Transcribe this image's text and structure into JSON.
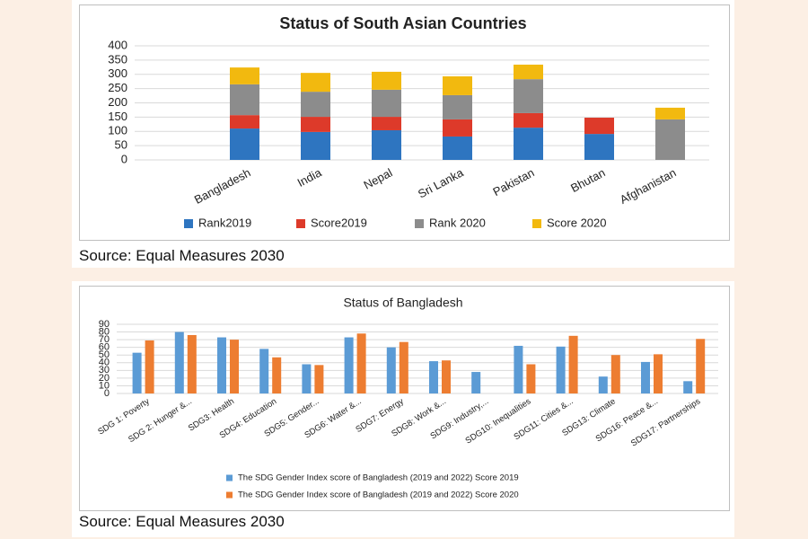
{
  "chart_data": [
    {
      "type": "bar",
      "stacked": true,
      "title": "Status of South Asian Countries",
      "source": "Source: Equal Measures 2030",
      "categories": [
        "Bangladesh",
        "India",
        "Nepal",
        "Sri Lanka",
        "Pakistan",
        "Bhutan",
        "Afghanistan"
      ],
      "series": [
        {
          "name": "Rank2019",
          "color": "#2e75c0",
          "values": [
            110,
            98,
            104,
            82,
            113,
            91,
            null
          ]
        },
        {
          "name": "Score2019",
          "color": "#dd3a2a",
          "values": [
            47,
            53,
            47,
            60,
            51,
            57,
            null
          ]
        },
        {
          "name": "Rank 2020",
          "color": "#8c8c8c",
          "values": [
            108,
            88,
            95,
            85,
            119,
            null,
            142
          ]
        },
        {
          "name": "Score 2020",
          "color": "#f2b90f",
          "values": [
            59,
            66,
            63,
            66,
            51,
            null,
            41
          ]
        }
      ],
      "ylim": [
        0,
        400
      ],
      "yticks": [
        0,
        50,
        100,
        150,
        200,
        250,
        300,
        350,
        400
      ],
      "grid": true,
      "legend": "bottom"
    },
    {
      "type": "bar",
      "stacked": false,
      "title": "Status of Bangladesh",
      "source": "Source: Equal Measures 2030",
      "categories": [
        "SDG 1: Poverty",
        "SDG 2: Hunger &...",
        "SDG3: Health",
        "SDG4: Education",
        "SDG5: Gender...",
        "SDG6: Water &...",
        "SDG7: Energy",
        "SDG8: Work &...",
        "SDG9: Industry,...",
        "SDG10: Inequalities",
        "SDG11: Cities &...",
        "SDG13: Climate",
        "SDG16: Peace &...",
        "SDG17: Partnerships"
      ],
      "series": [
        {
          "name": "The SDG Gender Index score of Bangladesh (2019 and 2022) Score 2019",
          "color": "#5b9bd5",
          "values": [
            53,
            80,
            73,
            58,
            38,
            73,
            60,
            42,
            28,
            62,
            61,
            22,
            41,
            16
          ]
        },
        {
          "name": "The SDG Gender Index score of Bangladesh (2019 and 2022) Score 2020",
          "color": "#ed7d31",
          "values": [
            69,
            76,
            70,
            47,
            37,
            78,
            67,
            43,
            null,
            38,
            75,
            50,
            51,
            71
          ]
        }
      ],
      "ylim": [
        0,
        90
      ],
      "yticks": [
        0,
        10,
        20,
        30,
        40,
        50,
        60,
        70,
        80,
        90
      ],
      "grid": true,
      "legend": "bottom"
    }
  ]
}
